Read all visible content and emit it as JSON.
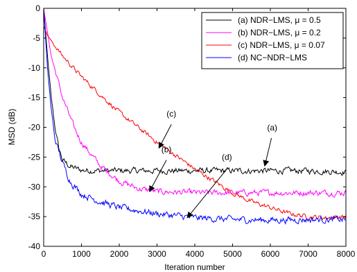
{
  "chart_data": {
    "type": "line",
    "title": "",
    "xlabel": "Iteration number",
    "ylabel": "MSD (dB)",
    "xlim": [
      0,
      8000
    ],
    "ylim": [
      -40,
      0
    ],
    "xticks": [
      0,
      1000,
      2000,
      3000,
      4000,
      5000,
      6000,
      7000,
      8000
    ],
    "yticks": [
      0,
      -5,
      -10,
      -15,
      -20,
      -25,
      -30,
      -35,
      -40
    ],
    "grid": false,
    "legend_position": "top-right",
    "series": [
      {
        "name": "(a) NDR−LMS, μ = 0.5",
        "color": "#000000",
        "points": [
          [
            0,
            0
          ],
          [
            100,
            -8
          ],
          [
            200,
            -15
          ],
          [
            300,
            -20
          ],
          [
            400,
            -23.5
          ],
          [
            500,
            -25.5
          ],
          [
            700,
            -26.6
          ],
          [
            1000,
            -27.2
          ],
          [
            1500,
            -27.3
          ],
          [
            2000,
            -27.3
          ],
          [
            3000,
            -27.3
          ],
          [
            4000,
            -27.3
          ],
          [
            5000,
            -27.3
          ],
          [
            6000,
            -27.3
          ],
          [
            7000,
            -27.3
          ],
          [
            8000,
            -27.5
          ]
        ],
        "noise": 0.45
      },
      {
        "name": "(b) NDR−LMS, μ = 0.2",
        "color": "#ff00ff",
        "points": [
          [
            0,
            0
          ],
          [
            200,
            -8
          ],
          [
            500,
            -15
          ],
          [
            800,
            -20
          ],
          [
            1000,
            -22.5
          ],
          [
            1500,
            -26.5
          ],
          [
            2000,
            -29
          ],
          [
            2500,
            -30.3
          ],
          [
            3000,
            -30.8
          ],
          [
            4000,
            -31
          ],
          [
            5000,
            -31
          ],
          [
            6000,
            -31
          ],
          [
            7000,
            -31
          ],
          [
            8000,
            -31
          ]
        ],
        "noise": 0.45
      },
      {
        "name": "(c) NDR−LMS, μ = 0.07",
        "color": "#ff0000",
        "points": [
          [
            0,
            -3
          ],
          [
            100,
            -4.5
          ],
          [
            200,
            -5.5
          ],
          [
            500,
            -8
          ],
          [
            1000,
            -11.5
          ],
          [
            2000,
            -17.5
          ],
          [
            3000,
            -22.5
          ],
          [
            4000,
            -27
          ],
          [
            4500,
            -29
          ],
          [
            5000,
            -31
          ],
          [
            5500,
            -32.5
          ],
          [
            6000,
            -33.5
          ],
          [
            6500,
            -34.5
          ],
          [
            7000,
            -35
          ],
          [
            7500,
            -35.2
          ],
          [
            8000,
            -35
          ]
        ],
        "noise": 0.35
      },
      {
        "name": "(d) NC−NDR−LMS",
        "color": "#0000ff",
        "points": [
          [
            0,
            0
          ],
          [
            100,
            -10
          ],
          [
            200,
            -17
          ],
          [
            300,
            -22
          ],
          [
            500,
            -26
          ],
          [
            700,
            -29
          ],
          [
            1000,
            -31.2
          ],
          [
            1500,
            -32.5
          ],
          [
            2000,
            -33.5
          ],
          [
            3000,
            -34.5
          ],
          [
            4000,
            -35.2
          ],
          [
            5000,
            -35.5
          ],
          [
            6000,
            -35.6
          ],
          [
            7000,
            -35.5
          ],
          [
            8000,
            -35.5
          ]
        ],
        "noise": 0.5
      }
    ],
    "annotations": [
      {
        "label": "(a)",
        "text_pos": [
          6050,
          -20.5
        ],
        "arrow_from": [
          6030,
          -21.8
        ],
        "arrow_to": [
          5850,
          -26.5
        ]
      },
      {
        "label": "(b)",
        "text_pos": [
          3250,
          -24.2
        ],
        "arrow_from": [
          3250,
          -25.5
        ],
        "arrow_to": [
          2800,
          -30.8
        ]
      },
      {
        "label": "(c)",
        "text_pos": [
          3380,
          -18.2
        ],
        "arrow_from": [
          3380,
          -19.5
        ],
        "arrow_to": [
          3050,
          -23.5
        ]
      },
      {
        "label": "(d)",
        "text_pos": [
          4850,
          -25.5
        ],
        "arrow_from": [
          4850,
          -27
        ],
        "arrow_to": [
          3800,
          -35.2
        ]
      }
    ]
  }
}
